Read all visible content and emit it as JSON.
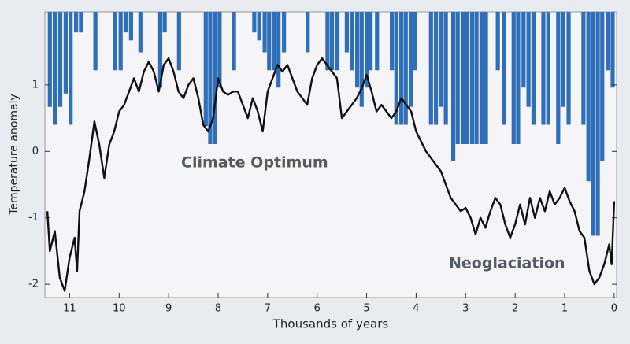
{
  "chart_data": {
    "type": "line",
    "xlabel": "Thousands of years",
    "ylabel": "Temperature anomaly",
    "annotations": [
      "Climate Optimum",
      "Neoglaciation"
    ],
    "xlim": [
      11.5,
      -0.05
    ],
    "ylim": [
      -2.2,
      2.1
    ],
    "xticks": [
      11,
      10,
      9,
      8,
      7,
      6,
      5,
      4,
      3,
      2,
      1,
      0
    ],
    "yticks": [
      -2,
      -1,
      0,
      1
    ],
    "series": [
      {
        "color": "#111111",
        "x": [
          11.45,
          11.4,
          11.3,
          11.2,
          11.1,
          11.0,
          10.9,
          10.85,
          10.8,
          10.7,
          10.6,
          10.5,
          10.4,
          10.3,
          10.2,
          10.1,
          10.0,
          9.9,
          9.8,
          9.7,
          9.6,
          9.5,
          9.4,
          9.3,
          9.2,
          9.1,
          9.0,
          8.9,
          8.8,
          8.7,
          8.6,
          8.5,
          8.4,
          8.3,
          8.2,
          8.1,
          8.0,
          7.9,
          7.8,
          7.7,
          7.6,
          7.5,
          7.4,
          7.3,
          7.2,
          7.1,
          7.0,
          6.9,
          6.8,
          6.7,
          6.6,
          6.5,
          6.4,
          6.3,
          6.2,
          6.1,
          6.0,
          5.9,
          5.8,
          5.7,
          5.6,
          5.5,
          5.4,
          5.3,
          5.2,
          5.1,
          5.0,
          4.9,
          4.8,
          4.7,
          4.6,
          4.5,
          4.4,
          4.3,
          4.2,
          4.1,
          4.0,
          3.8,
          3.6,
          3.5,
          3.4,
          3.3,
          3.2,
          3.1,
          3.0,
          2.9,
          2.8,
          2.7,
          2.6,
          2.5,
          2.4,
          2.3,
          2.2,
          2.1,
          2.0,
          1.9,
          1.8,
          1.7,
          1.6,
          1.5,
          1.4,
          1.3,
          1.2,
          1.1,
          1.0,
          0.9,
          0.8,
          0.7,
          0.6,
          0.5,
          0.4,
          0.3,
          0.2,
          0.1,
          0.05,
          0.0
        ],
        "values": [
          -0.9,
          -1.5,
          -1.2,
          -1.9,
          -2.1,
          -1.6,
          -1.3,
          -1.8,
          -0.9,
          -0.6,
          -0.1,
          0.45,
          0.1,
          -0.4,
          0.1,
          0.3,
          0.6,
          0.7,
          0.9,
          1.1,
          0.9,
          1.2,
          1.35,
          1.2,
          0.9,
          1.3,
          1.4,
          1.2,
          0.9,
          0.8,
          1.0,
          1.1,
          0.8,
          0.4,
          0.3,
          0.5,
          1.1,
          0.9,
          0.85,
          0.9,
          0.9,
          0.7,
          0.5,
          0.8,
          0.6,
          0.3,
          0.9,
          1.1,
          1.3,
          1.2,
          1.3,
          1.1,
          0.9,
          0.8,
          0.7,
          1.1,
          1.3,
          1.4,
          1.3,
          1.2,
          1.1,
          0.5,
          0.6,
          0.7,
          0.8,
          0.95,
          1.15,
          0.9,
          0.6,
          0.7,
          0.6,
          0.5,
          0.6,
          0.8,
          0.7,
          0.6,
          0.3,
          0.0,
          -0.2,
          -0.3,
          -0.5,
          -0.7,
          -0.8,
          -0.9,
          -0.85,
          -1.0,
          -1.25,
          -1.0,
          -1.15,
          -0.9,
          -0.7,
          -0.8,
          -1.1,
          -1.3,
          -1.1,
          -0.8,
          -1.1,
          -0.7,
          -1.0,
          -0.7,
          -0.9,
          -0.6,
          -0.8,
          -0.7,
          -0.55,
          -0.75,
          -0.9,
          -1.2,
          -1.3,
          -1.8,
          -2.0,
          -1.9,
          -1.7,
          -1.4,
          -1.7,
          -0.75
        ]
      }
    ],
    "bars": {
      "color": "#2f6fba",
      "x": [
        11.4,
        11.3,
        11.19,
        11.08,
        10.98,
        10.87,
        10.77,
        10.48,
        10.08,
        9.97,
        9.87,
        9.76,
        9.57,
        9.17,
        9.08,
        8.79,
        8.25,
        8.16,
        8.06,
        7.97,
        7.68,
        7.27,
        7.17,
        7.06,
        6.97,
        6.87,
        6.78,
        6.67,
        6.19,
        5.79,
        5.7,
        5.59,
        5.4,
        5.29,
        5.19,
        5.1,
        5.0,
        4.92,
        4.79,
        4.49,
        4.4,
        4.3,
        4.21,
        4.11,
        4.02,
        3.7,
        3.6,
        3.49,
        3.4,
        3.25,
        3.16,
        3.06,
        2.97,
        2.87,
        2.78,
        2.68,
        2.59,
        2.35,
        2.22,
        2.03,
        1.94,
        1.83,
        1.73,
        1.63,
        1.43,
        1.33,
        1.13,
        1.03,
        0.92,
        0.62,
        0.52,
        0.43,
        0.33,
        0.24,
        0.13,
        0.03
      ],
      "values": [
        0.67,
        0.4,
        0.67,
        0.87,
        0.4,
        1.79,
        1.79,
        1.22,
        1.22,
        1.22,
        1.79,
        1.67,
        1.49,
        0.96,
        1.79,
        1.22,
        0.38,
        0.11,
        0.11,
        0.96,
        1.22,
        1.79,
        1.67,
        1.49,
        1.22,
        1.22,
        0.96,
        1.49,
        1.49,
        1.22,
        1.22,
        1.22,
        1.49,
        1.22,
        0.96,
        0.67,
        0.96,
        1.22,
        1.22,
        1.22,
        0.4,
        0.4,
        0.4,
        0.67,
        1.22,
        0.4,
        0.4,
        0.67,
        0.4,
        -0.15,
        0.11,
        0.11,
        0.11,
        0.11,
        0.11,
        0.11,
        0.11,
        1.22,
        0.4,
        0.11,
        0.11,
        0.96,
        0.67,
        0.4,
        0.4,
        0.4,
        0.11,
        0.67,
        0.4,
        0.4,
        -0.45,
        -1.27,
        -1.27,
        -0.15,
        1.22,
        0.96
      ]
    }
  }
}
